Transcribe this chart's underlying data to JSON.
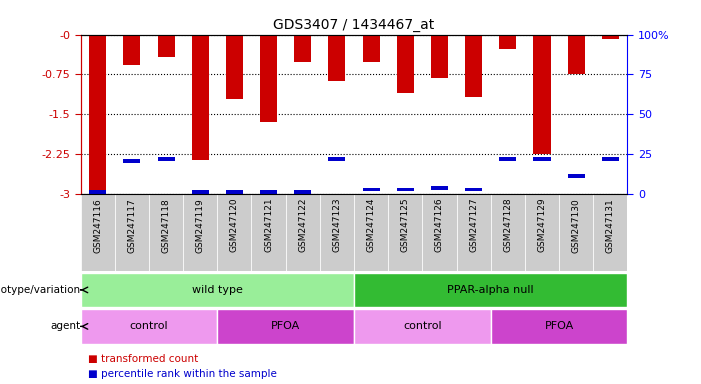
{
  "title": "GDS3407 / 1434467_at",
  "samples": [
    "GSM247116",
    "GSM247117",
    "GSM247118",
    "GSM247119",
    "GSM247120",
    "GSM247121",
    "GSM247122",
    "GSM247123",
    "GSM247124",
    "GSM247125",
    "GSM247126",
    "GSM247127",
    "GSM247128",
    "GSM247129",
    "GSM247130",
    "GSM247131"
  ],
  "red_values": [
    -3.0,
    -0.58,
    -0.42,
    -2.36,
    -1.22,
    -1.65,
    -0.52,
    -0.88,
    -0.52,
    -1.1,
    -0.82,
    -1.18,
    -0.28,
    -2.25,
    -0.75,
    -0.08
  ],
  "blue_top": [
    -3.0,
    -2.42,
    -2.38,
    -3.0,
    -3.0,
    -3.0,
    -3.0,
    -2.38,
    -2.95,
    -2.95,
    -2.92,
    -2.95,
    -2.38,
    -2.38,
    -2.7,
    -2.38
  ],
  "blue_height": [
    0.07,
    0.07,
    0.07,
    0.07,
    0.07,
    0.07,
    0.07,
    0.07,
    0.07,
    0.07,
    0.07,
    0.07,
    0.07,
    0.07,
    0.07,
    0.07
  ],
  "ylim": [
    -3.0,
    0.0
  ],
  "yticks": [
    0.0,
    -0.75,
    -1.5,
    -2.25,
    -3.0
  ],
  "ytick_labels": [
    "-0",
    "-0.75",
    "-1.5",
    "-2.25",
    "-3"
  ],
  "right_ytick_positions": [
    0.0,
    -0.75,
    -1.5,
    -2.25,
    -3.0
  ],
  "right_ytick_labels": [
    "100%",
    "75",
    "50",
    "25",
    "0"
  ],
  "bar_width": 0.5,
  "red_color": "#cc0000",
  "blue_color": "#0000cc",
  "background_color": "#ffffff",
  "plot_bg": "#ffffff",
  "tick_bg_color": "#cccccc",
  "genotype_groups": [
    {
      "label": "wild type",
      "start": 0,
      "end": 8,
      "color": "#99ee99"
    },
    {
      "label": "PPAR-alpha null",
      "start": 8,
      "end": 16,
      "color": "#33bb33"
    }
  ],
  "agent_groups": [
    {
      "label": "control",
      "start": 0,
      "end": 4,
      "color": "#ee99ee"
    },
    {
      "label": "PFOA",
      "start": 4,
      "end": 8,
      "color": "#cc44cc"
    },
    {
      "label": "control",
      "start": 8,
      "end": 12,
      "color": "#ee99ee"
    },
    {
      "label": "PFOA",
      "start": 12,
      "end": 16,
      "color": "#cc44cc"
    }
  ],
  "legend_items": [
    {
      "label": "transformed count",
      "color": "#cc0000"
    },
    {
      "label": "percentile rank within the sample",
      "color": "#0000cc"
    }
  ],
  "genotype_label": "genotype/variation",
  "agent_label": "agent"
}
